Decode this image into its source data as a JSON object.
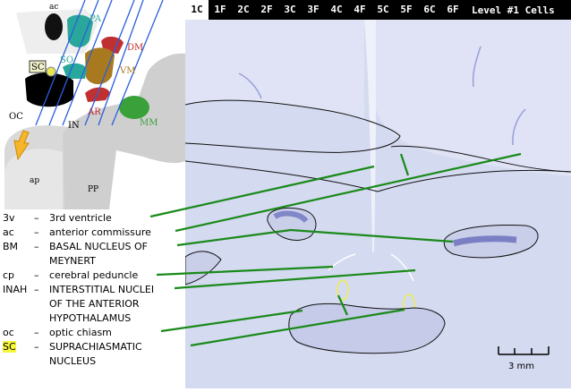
{
  "nav": {
    "tabs": [
      "1C",
      "1F",
      "2C",
      "2F",
      "3C",
      "3F",
      "4C",
      "4F",
      "5C",
      "5F",
      "6C",
      "6F"
    ],
    "active_index": 0,
    "level_title": "Level #1 Cells"
  },
  "diagram": {
    "labels": {
      "ac": "ac",
      "pa": "PA",
      "dm": "DM",
      "sc": "SC",
      "so": "SO",
      "vm": "VM",
      "oc": "OC",
      "in": "IN",
      "ar": "AR",
      "mm": "MM",
      "ap": "ap",
      "pp": "PP"
    }
  },
  "legend": [
    {
      "abbr": "3v",
      "dash": "–",
      "desc": "3rd ventricle"
    },
    {
      "abbr": "ac",
      "dash": "–",
      "desc": "anterior commissure"
    },
    {
      "abbr": "BM",
      "dash": "–",
      "desc": "BASAL NUCLEUS OF",
      "desc2": "MEYNERT"
    },
    {
      "abbr": "cp",
      "dash": "–",
      "desc": "cerebral peduncle"
    },
    {
      "abbr": "INAH",
      "dash": "–",
      "desc": "INTERSTITIAL NUCLEI",
      "desc2": "OF THE ANTERIOR",
      "desc3": "HYPOTHALAMUS"
    },
    {
      "abbr": "oc",
      "dash": "–",
      "desc": "optic chiasm"
    },
    {
      "abbr": "SC",
      "dash": "–",
      "desc": "SUPRACHIASMATIC",
      "desc2": "NUCLEUS"
    }
  ],
  "scale": {
    "label": "3 mm"
  },
  "colors": {
    "pointer_line": "#1a8a1a",
    "highlight": "#f4f73a",
    "tissue": "#d9def2"
  }
}
